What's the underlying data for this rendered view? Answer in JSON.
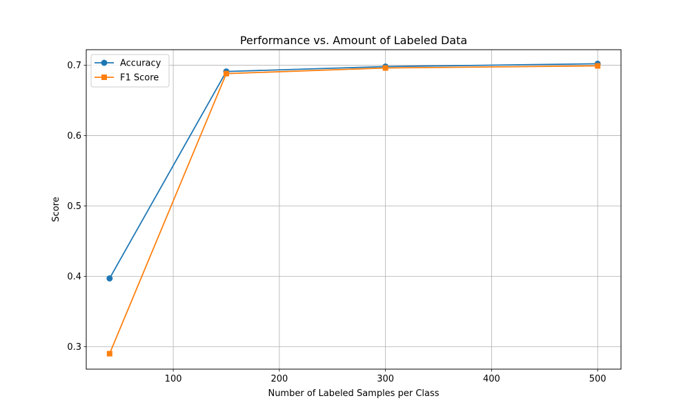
{
  "chart_data": {
    "type": "line",
    "title": "Performance vs. Amount of Labeled Data",
    "xlabel": "Number of Labeled Samples per Class",
    "ylabel": "Score",
    "xlim": [
      18,
      522
    ],
    "ylim": [
      0.268,
      0.722
    ],
    "x_ticks": [
      100,
      200,
      300,
      400,
      500
    ],
    "y_ticks": [
      0.3,
      0.4,
      0.5,
      0.6,
      0.7
    ],
    "grid": true,
    "legend_position": "upper left",
    "series": [
      {
        "name": "Accuracy",
        "marker": "circle",
        "color": "#1f77b4",
        "x": [
          40,
          150,
          300,
          500
        ],
        "y": [
          0.397,
          0.691,
          0.698,
          0.702
        ]
      },
      {
        "name": "F1 Score",
        "marker": "square",
        "color": "#ff7f0e",
        "x": [
          40,
          150,
          300,
          500
        ],
        "y": [
          0.29,
          0.688,
          0.696,
          0.699
        ]
      }
    ]
  }
}
